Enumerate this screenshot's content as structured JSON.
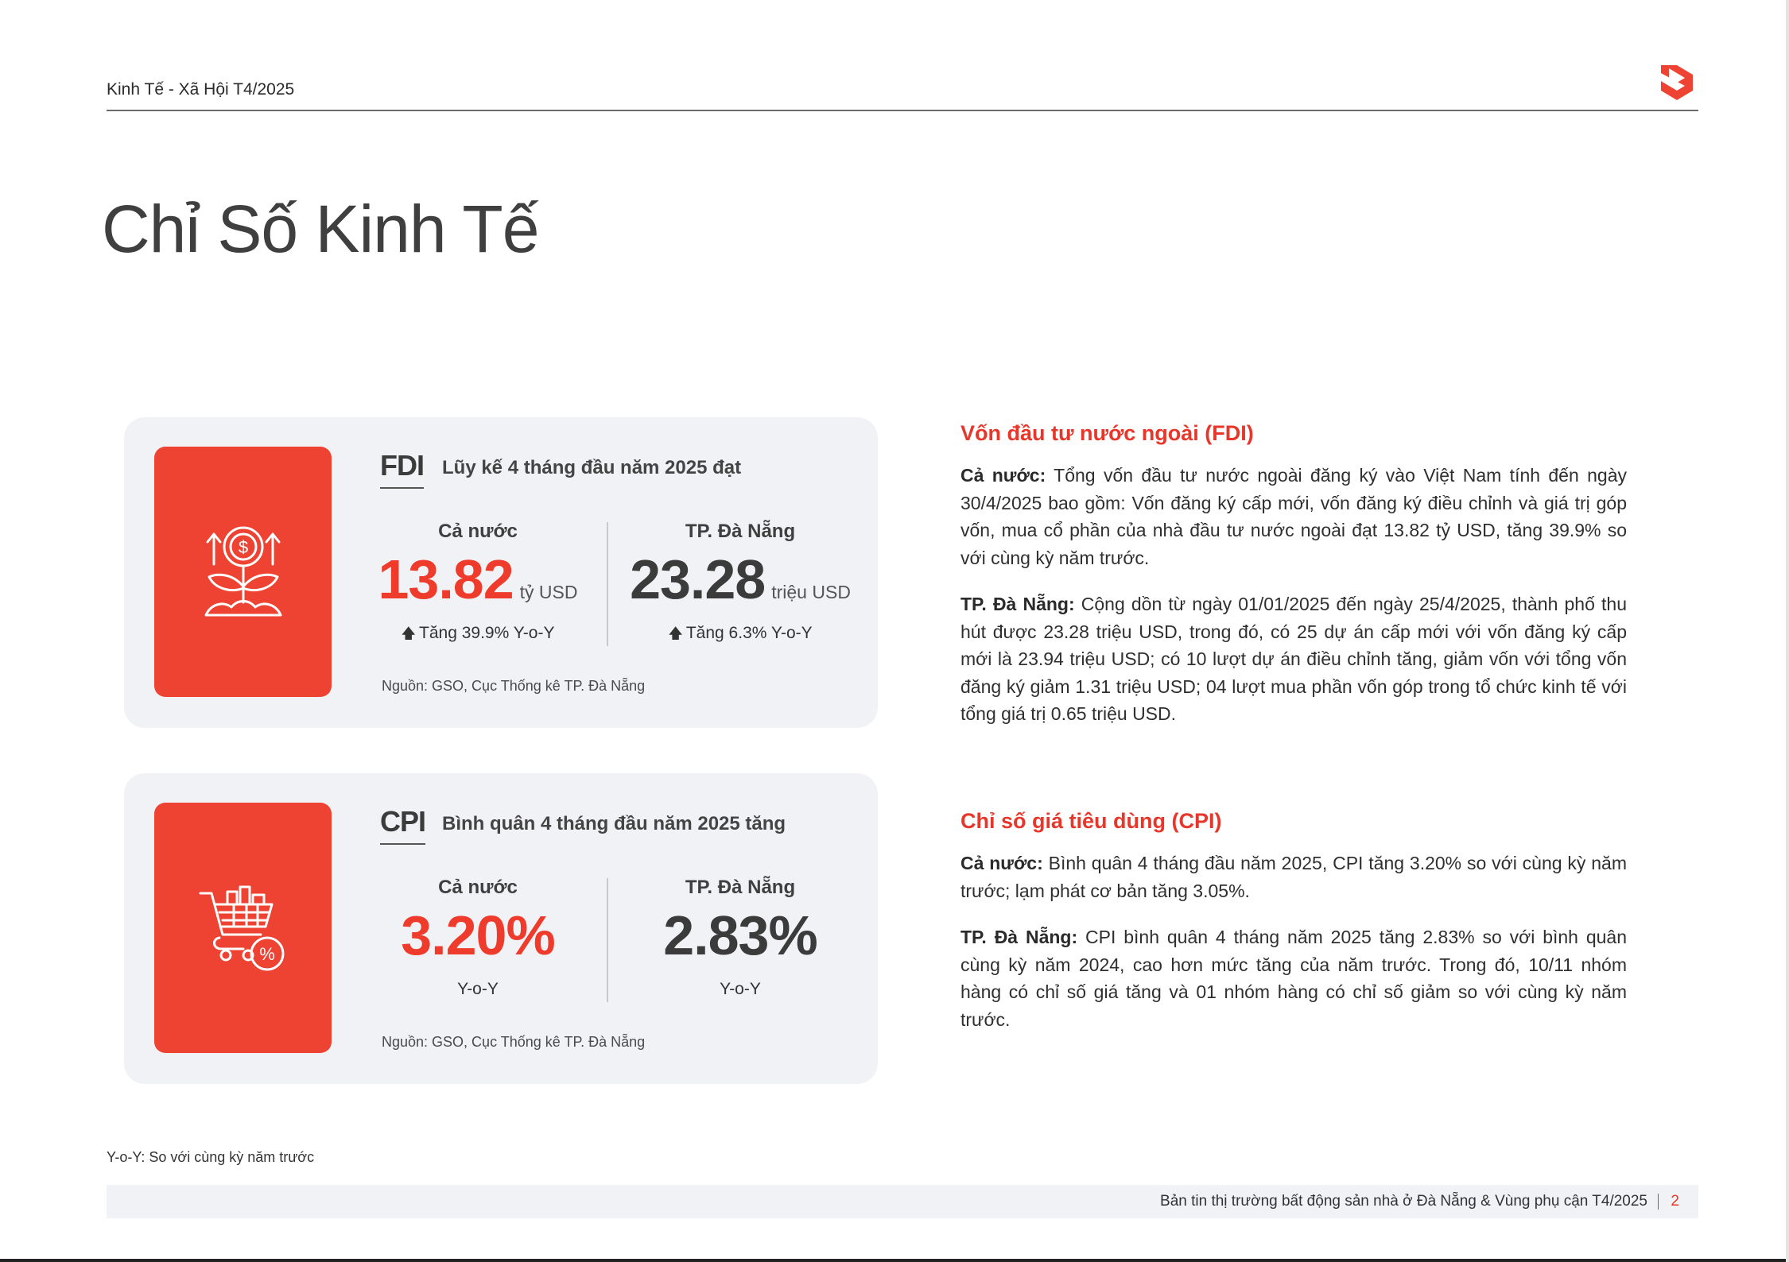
{
  "header": {
    "title": "Kinh Tế - Xã Hội T4/2025",
    "logo_icon": "brand-logo-icon",
    "accent": "#ee4232"
  },
  "page_title": "Chỉ Số Kinh Tế",
  "fdi_card": {
    "icon": "money-plant-icon",
    "code": "FDI",
    "subtitle": "Lũy kế 4 tháng đầu năm 2025 đạt",
    "national": {
      "label": "Cả nước",
      "value": "13.82",
      "unit": "tỷ USD",
      "change": "Tăng 39.9% Y-o-Y"
    },
    "danang": {
      "label": "TP. Đà Nẵng",
      "value": "23.28",
      "unit": "triệu USD",
      "change": "Tăng 6.3% Y-o-Y"
    },
    "source": "Nguồn: GSO, Cục Thống kê TP. Đà Nẵng"
  },
  "cpi_card": {
    "icon": "shopping-cart-percent-icon",
    "code": "CPI",
    "subtitle": "Bình quân 4 tháng đầu năm 2025 tăng",
    "national": {
      "label": "Cả nước",
      "value": "3.20%",
      "note": "Y-o-Y"
    },
    "danang": {
      "label": "TP. Đà Nẵng",
      "value": "2.83%",
      "note": "Y-o-Y"
    },
    "source": "Nguồn: GSO, Cục Thống kê TP. Đà Nẵng"
  },
  "fdi_text": {
    "heading": "Vốn đầu tư nước ngoài (FDI)",
    "p1_lead": "Cả nước:",
    "p1": " Tổng vốn đầu tư nước ngoài đăng ký vào Việt Nam  tính đến ngày 30/4/2025 bao gồm: Vốn đăng ký cấp mới, vốn đăng ký điều chỉnh và giá trị góp vốn, mua cổ phần của nhà đầu tư nước ngoài đạt 13.82 tỷ USD, tăng 39.9% so với cùng kỳ năm trước.",
    "p2_lead": "TP. Đà Nẵng:",
    "p2": " Cộng dồn từ ngày 01/01/2025 đến ngày 25/4/2025, thành phố thu hút được 23.28 triệu USD, trong đó, có 25 dự án cấp mới với vốn đăng ký cấp mới là 23.94 triệu USD; có 10 lượt dự án điều chỉnh tăng, giảm vốn với tổng vốn đăng ký giảm 1.31 triệu USD; 04 lượt mua phần vốn góp trong tổ chức kinh tế với tổng giá trị 0.65 triệu USD."
  },
  "cpi_text": {
    "heading": "Chỉ số giá tiêu dùng (CPI)",
    "p1_lead": "Cả nước:",
    "p1": " Bình quân 4 tháng đầu năm 2025, CPI tăng 3.20% so với cùng kỳ năm trước; lạm phát cơ bản tăng 3.05%.",
    "p2_lead": "TP. Đà Nẵng:",
    "p2": " CPI bình quân 4 tháng năm 2025 tăng 2.83% so với bình quân cùng kỳ năm 2024, cao hơn mức tăng của năm trước. Trong đó, 10/11 nhóm hàng có chỉ số giá tăng và 01 nhóm hàng có chỉ số giảm so với cùng kỳ năm trước."
  },
  "note": "Y-o-Y: So với cùng kỳ năm trước",
  "footer": {
    "text": "Bản tin thị trường bất động sản nhà ở Đà Nẵng & Vùng phụ cận T4/2025",
    "page": "2"
  }
}
